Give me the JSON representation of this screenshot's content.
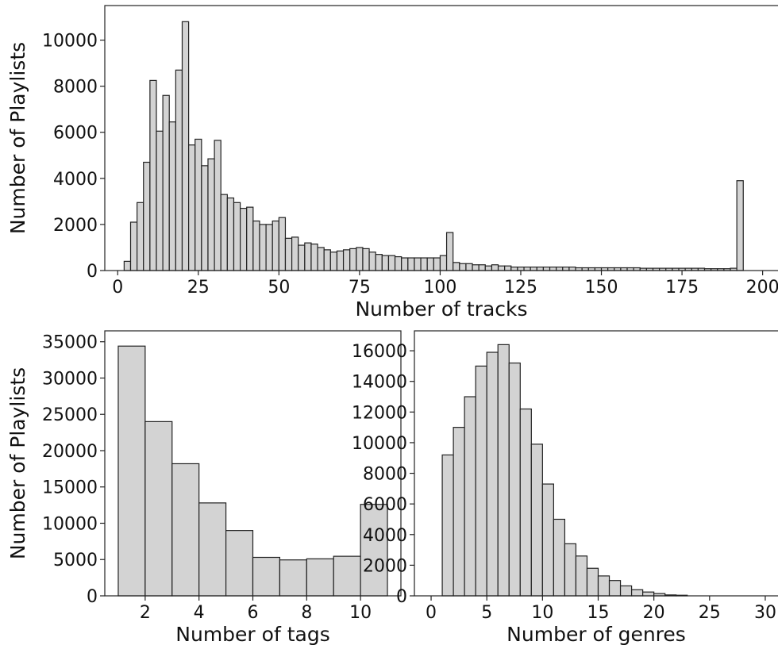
{
  "chart_data": [
    {
      "type": "bar",
      "xlabel": "Number of tracks",
      "ylabel": "Number of Playlists",
      "xlim": [
        -4,
        206
      ],
      "ylim": [
        0,
        11500
      ],
      "xticks": [
        0,
        25,
        50,
        75,
        100,
        125,
        150,
        175,
        200
      ],
      "yticks": [
        0,
        2000,
        4000,
        6000,
        8000,
        10000
      ],
      "bin_edges_start": 2,
      "bin_width": 2,
      "values": [
        400,
        2100,
        2950,
        4700,
        8250,
        6050,
        7600,
        6450,
        8700,
        10800,
        5450,
        5700,
        4550,
        4850,
        5650,
        3300,
        3150,
        2950,
        2700,
        2750,
        2150,
        2000,
        2000,
        2150,
        2300,
        1400,
        1450,
        1100,
        1200,
        1150,
        1000,
        900,
        800,
        850,
        900,
        950,
        1000,
        950,
        800,
        700,
        650,
        650,
        600,
        550,
        550,
        550,
        550,
        550,
        550,
        650,
        1650,
        350,
        300,
        300,
        250,
        250,
        200,
        250,
        200,
        200,
        150,
        150,
        150,
        150,
        150,
        150,
        150,
        150,
        150,
        150,
        120,
        120,
        120,
        120,
        120,
        120,
        120,
        120,
        120,
        120,
        100,
        100,
        100,
        100,
        100,
        100,
        100,
        100,
        100,
        100,
        80,
        80,
        80,
        80,
        100,
        3900
      ]
    },
    {
      "type": "bar",
      "xlabel": "Number of tags",
      "ylabel": "Number of Playlists",
      "xlim": [
        0.5,
        11.5
      ],
      "ylim": [
        0,
        36500
      ],
      "xticks": [
        2,
        4,
        6,
        8,
        10
      ],
      "yticks": [
        0,
        5000,
        10000,
        15000,
        20000,
        25000,
        30000,
        35000
      ],
      "bin_edges_start": 1,
      "bin_width": 1,
      "values": [
        34400,
        24000,
        18200,
        12800,
        9000,
        5300,
        4950,
        5100,
        5450,
        12600
      ]
    },
    {
      "type": "bar",
      "xlabel": "Number of genres",
      "ylabel": "",
      "xlim": [
        -1.5,
        31.5
      ],
      "ylim": [
        0,
        17300
      ],
      "xticks": [
        0,
        5,
        10,
        15,
        20,
        25,
        30
      ],
      "yticks": [
        0,
        2000,
        4000,
        6000,
        8000,
        10000,
        12000,
        14000,
        16000
      ],
      "bin_edges_start": 1,
      "bin_width": 1,
      "values": [
        9200,
        11000,
        13000,
        15000,
        15900,
        16400,
        15200,
        12200,
        9900,
        7300,
        5000,
        3400,
        2600,
        1800,
        1300,
        1000,
        650,
        400,
        250,
        150,
        60,
        40
      ]
    }
  ]
}
